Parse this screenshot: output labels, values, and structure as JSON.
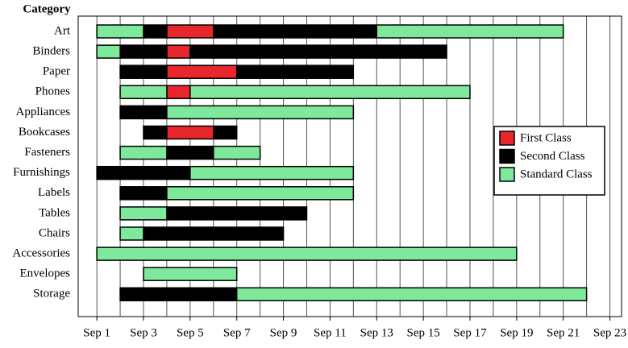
{
  "chart_data": {
    "type": "gantt",
    "y_label": "Category",
    "categories": [
      "Art",
      "Binders",
      "Paper",
      "Phones",
      "Appliances",
      "Bookcases",
      "Fasteners",
      "Furnishings",
      "Labels",
      "Tables",
      "Chairs",
      "Accessories",
      "Envelopes",
      "Storage"
    ],
    "series": [
      {
        "name": "First Class",
        "color": "#e8262b",
        "values": [
          [
            [
              4,
              6
            ]
          ],
          [
            [
              4,
              5
            ]
          ],
          [
            [
              4,
              7
            ]
          ],
          [
            [
              4,
              5
            ]
          ],
          [],
          [
            [
              4,
              6
            ]
          ],
          [],
          [],
          [],
          [],
          [],
          [],
          [],
          []
        ]
      },
      {
        "name": "Second Class",
        "color": "#000000",
        "values": [
          [
            [
              3,
              4
            ],
            [
              6,
              13
            ]
          ],
          [
            [
              2,
              4
            ],
            [
              5,
              16
            ]
          ],
          [
            [
              2,
              4
            ],
            [
              7,
              12
            ]
          ],
          [],
          [
            [
              2,
              4
            ]
          ],
          [
            [
              3,
              4
            ],
            [
              6,
              7
            ]
          ],
          [
            [
              4,
              6
            ]
          ],
          [
            [
              1,
              5
            ]
          ],
          [
            [
              2,
              4
            ]
          ],
          [
            [
              4,
              10
            ]
          ],
          [
            [
              3,
              9
            ]
          ],
          [],
          [],
          [
            [
              2,
              7
            ]
          ]
        ]
      },
      {
        "name": "Standard Class",
        "color": "#7ee89b",
        "values": [
          [
            [
              1,
              3
            ],
            [
              13,
              21
            ]
          ],
          [
            [
              1,
              2
            ]
          ],
          [],
          [
            [
              2,
              4
            ],
            [
              5,
              17
            ]
          ],
          [
            [
              4,
              12
            ]
          ],
          [],
          [
            [
              2,
              4
            ],
            [
              6,
              8
            ]
          ],
          [
            [
              5,
              12
            ]
          ],
          [
            [
              4,
              12
            ]
          ],
          [
            [
              2,
              4
            ]
          ],
          [
            [
              2,
              3
            ]
          ],
          [
            [
              1,
              19
            ]
          ],
          [
            [
              3,
              7
            ]
          ],
          [
            [
              7,
              22
            ]
          ]
        ]
      }
    ],
    "xlim": [
      0.2,
      23.5
    ],
    "xticks": [
      {
        "value": 1,
        "label": "Sep 1"
      },
      {
        "value": 3,
        "label": "Sep 3"
      },
      {
        "value": 5,
        "label": "Sep 5"
      },
      {
        "value": 7,
        "label": "Sep 7"
      },
      {
        "value": 9,
        "label": "Sep 9"
      },
      {
        "value": 11,
        "label": "Sep 11"
      },
      {
        "value": 13,
        "label": "Sep 13"
      },
      {
        "value": 15,
        "label": "Sep 15"
      },
      {
        "value": 17,
        "label": "Sep 17"
      },
      {
        "value": 19,
        "label": "Sep 19"
      },
      {
        "value": 21,
        "label": "Sep 21"
      },
      {
        "value": 23,
        "label": "Sep 23"
      }
    ],
    "grid": true,
    "legend": "center right"
  }
}
